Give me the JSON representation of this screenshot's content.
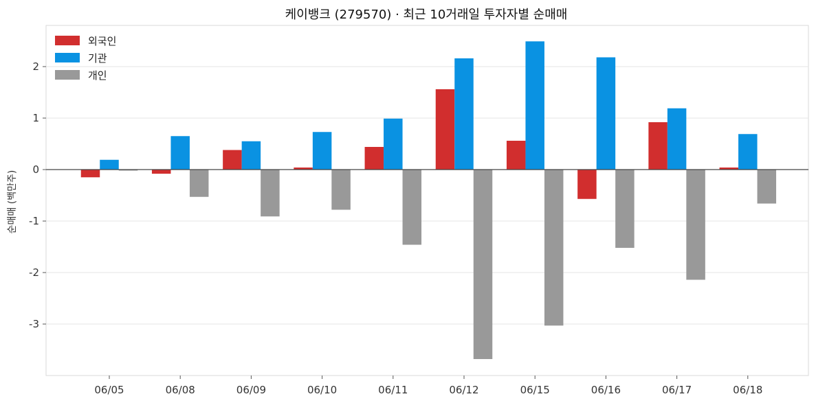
{
  "chart_data": {
    "type": "bar",
    "title": "케이뱅크 (279570) · 최근 10거래일 투자자별 순매매",
    "xlabel": "",
    "ylabel": "순매매 (백만주)",
    "categories": [
      "06/05",
      "06/08",
      "06/09",
      "06/10",
      "06/11",
      "06/12",
      "06/15",
      "06/16",
      "06/17",
      "06/18"
    ],
    "series": [
      {
        "name": "외국인",
        "color": "#d12e2e",
        "values": [
          -0.15,
          -0.08,
          0.38,
          0.04,
          0.44,
          1.56,
          0.56,
          -0.57,
          0.92,
          0.04
        ]
      },
      {
        "name": "기관",
        "color": "#0a92e2",
        "values": [
          0.19,
          0.65,
          0.55,
          0.73,
          0.99,
          2.16,
          2.49,
          2.18,
          1.19,
          0.69
        ]
      },
      {
        "name": "개인",
        "color": "#999999",
        "values": [
          -0.02,
          -0.53,
          -0.91,
          -0.78,
          -1.46,
          -3.68,
          -3.03,
          -1.52,
          -2.14,
          -0.66
        ]
      }
    ],
    "ylim": [
      -4.0,
      2.8
    ],
    "yticks": [
      -3,
      -2,
      -1,
      0,
      1,
      2
    ],
    "ytick_labels": [
      "-3",
      "-2",
      "-1",
      "0",
      "1",
      "2"
    ],
    "grid": "horizontal",
    "legend_position": "top-left"
  }
}
